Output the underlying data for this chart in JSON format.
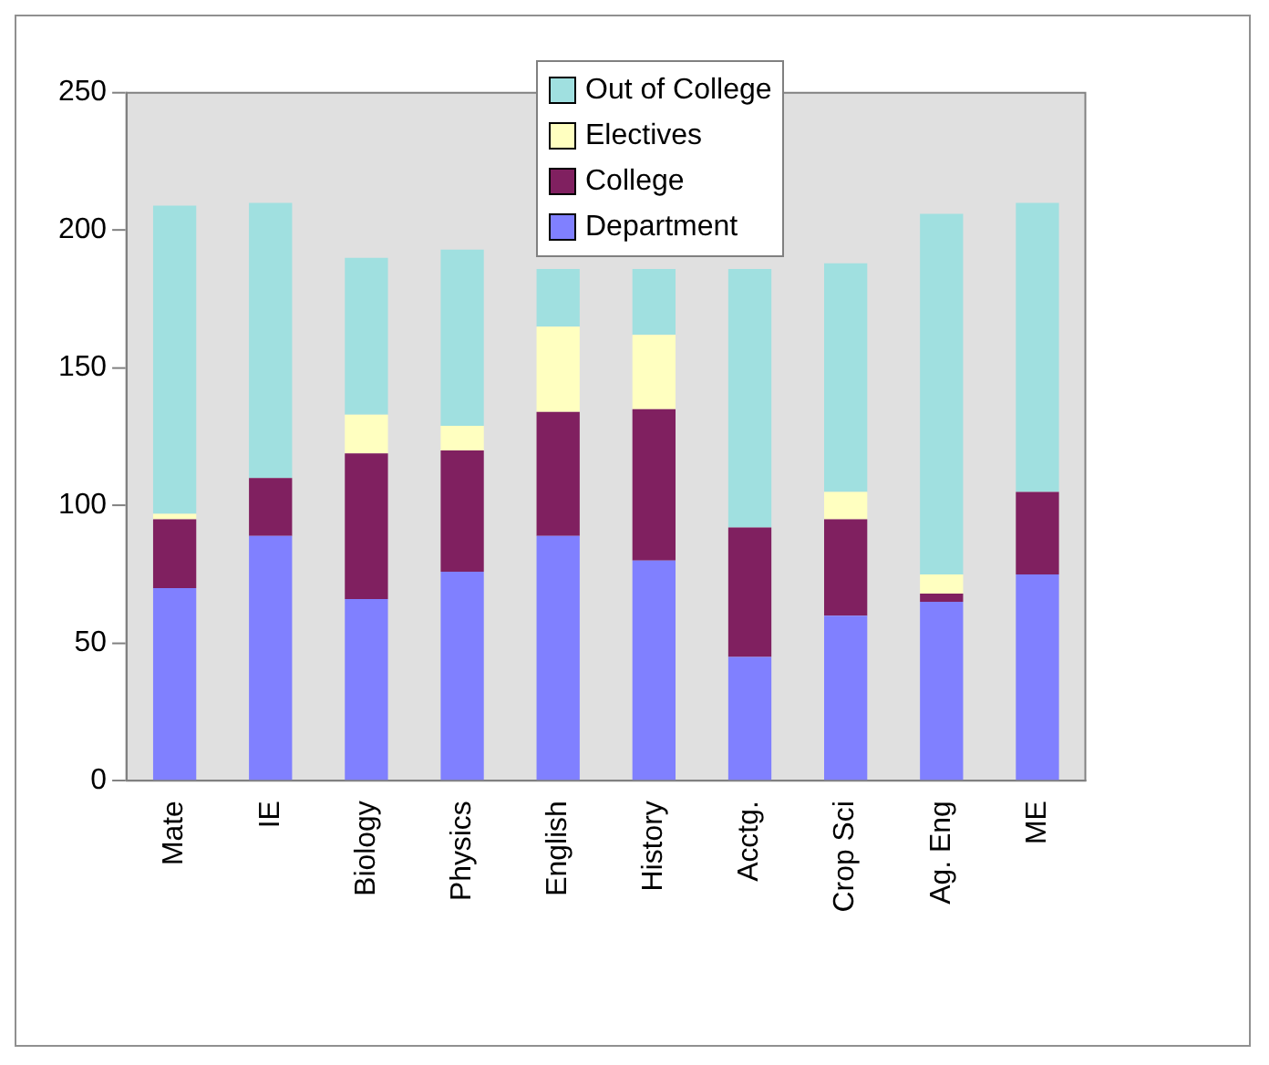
{
  "chart_data": {
    "type": "bar",
    "stacked": true,
    "categories": [
      "Mate",
      "IE",
      "Biology",
      "Physics",
      "English",
      "History",
      "Acctg.",
      "Crop Sci",
      "Ag. Eng",
      "ME"
    ],
    "series": [
      {
        "name": "Department",
        "color": "#8080ff",
        "values": [
          70,
          89,
          66,
          76,
          89,
          80,
          45,
          60,
          65,
          75
        ]
      },
      {
        "name": "College",
        "color": "#802060",
        "values": [
          25,
          21,
          53,
          44,
          45,
          55,
          47,
          35,
          3,
          30
        ]
      },
      {
        "name": "Electives",
        "color": "#ffffc0",
        "values": [
          2,
          0,
          14,
          9,
          31,
          27,
          0,
          10,
          7,
          0
        ]
      },
      {
        "name": "Out of College",
        "color": "#a0e0e0",
        "values": [
          112,
          100,
          57,
          64,
          21,
          24,
          94,
          83,
          131,
          105
        ]
      }
    ],
    "ylim": [
      0,
      250
    ],
    "yticks": [
      0,
      50,
      100,
      150,
      200,
      250
    ],
    "grid": false,
    "legend": "top"
  }
}
